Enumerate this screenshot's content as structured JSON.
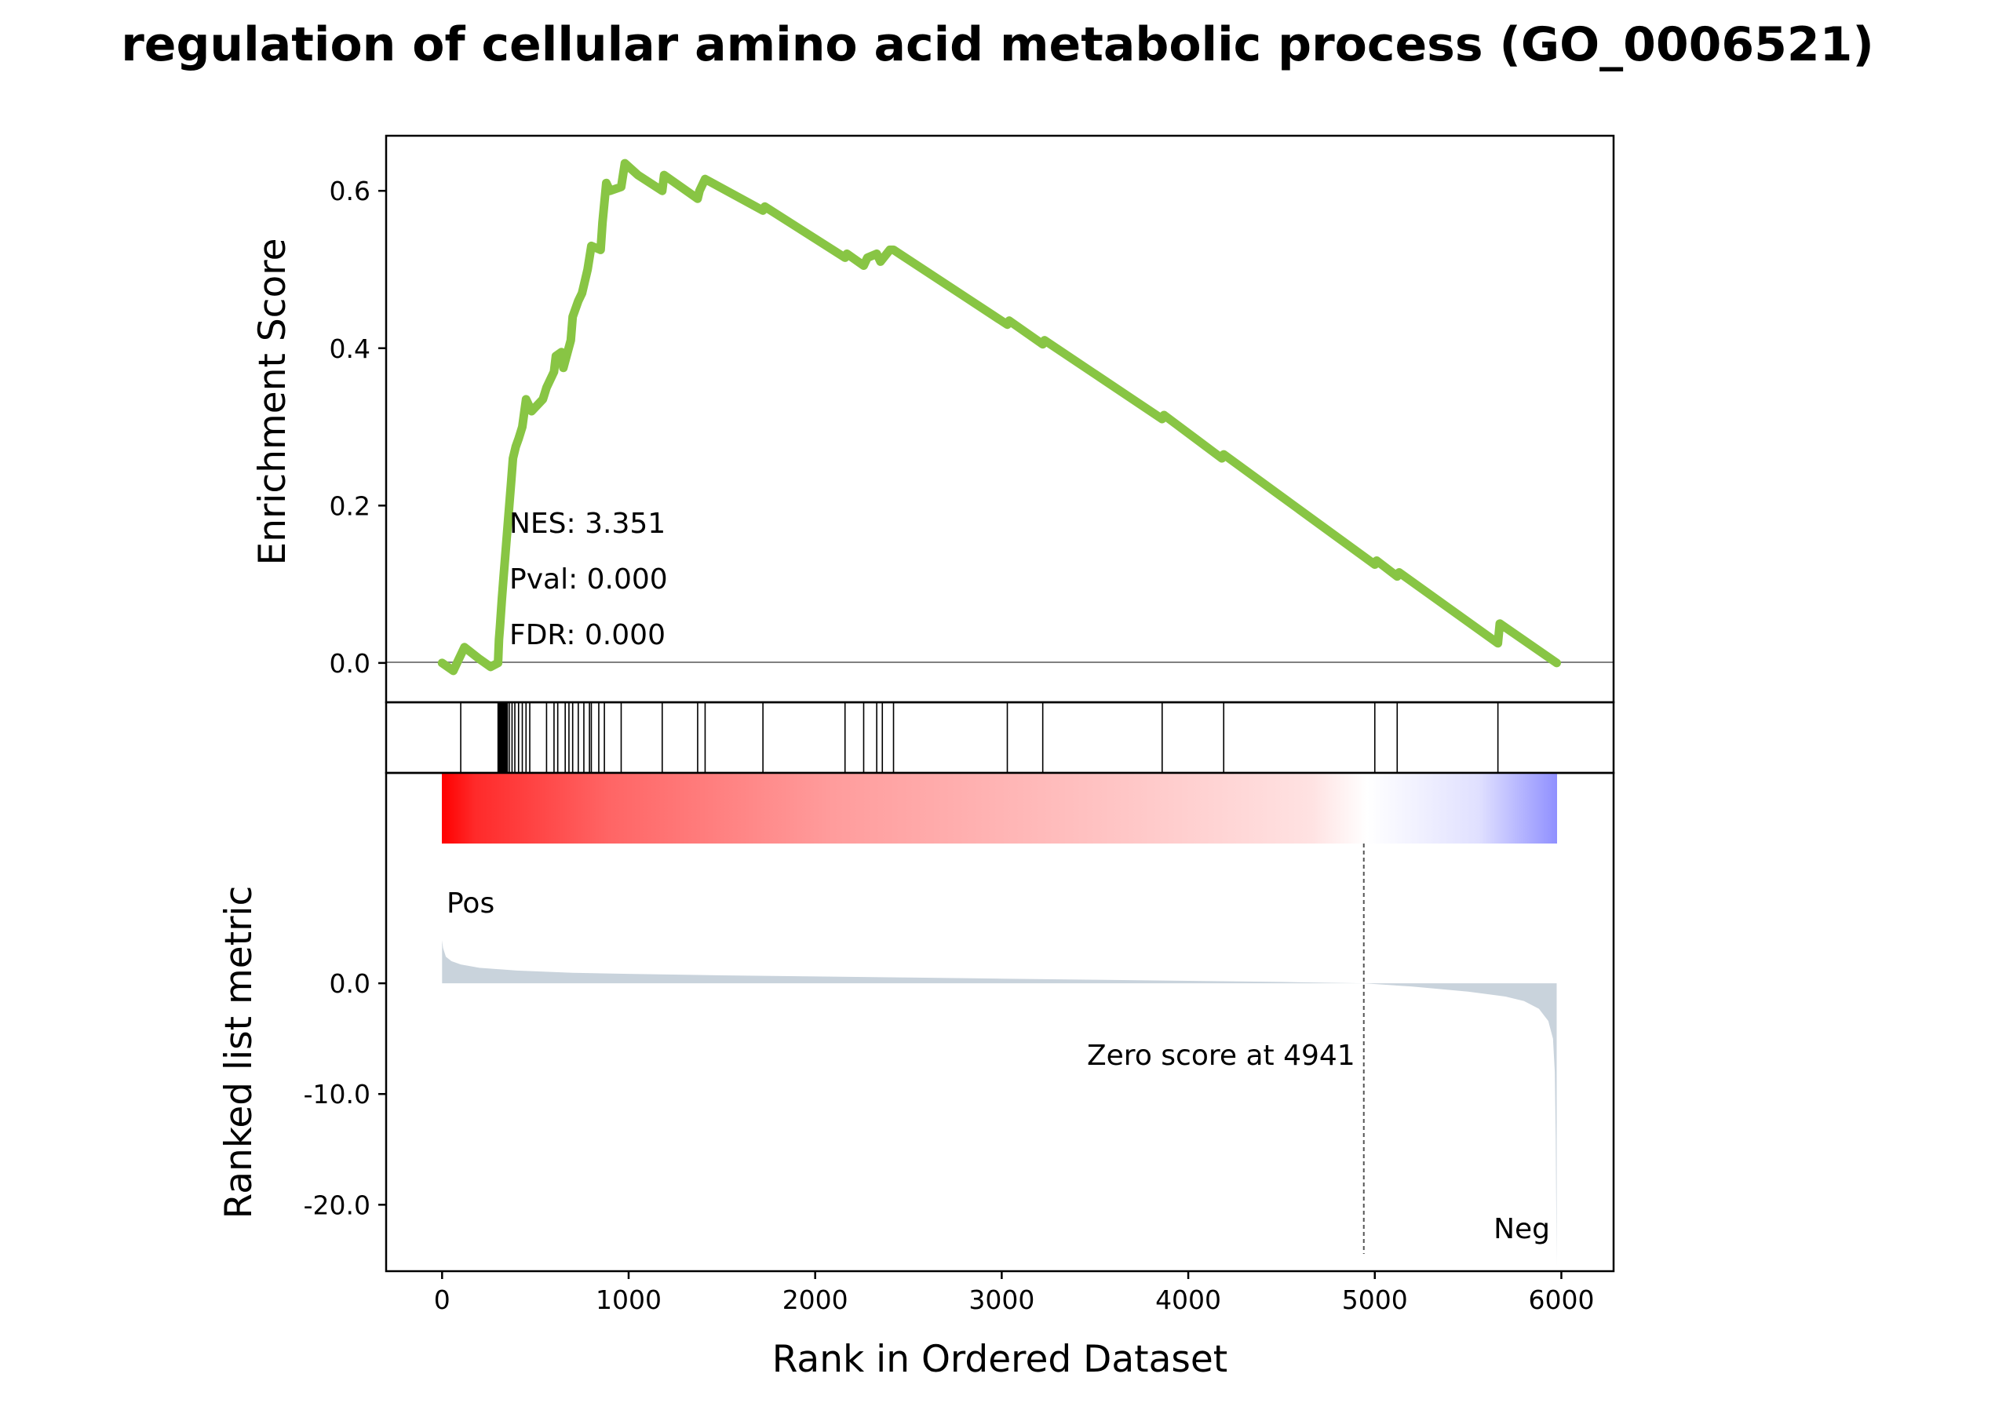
{
  "chart_data": {
    "type": "line",
    "title": "regulation of cellular amino acid metabolic process (GO_0006521)",
    "xlabel": "Rank in Ordered Dataset",
    "xlim": [
      -300,
      6280
    ],
    "xticks": [
      "0",
      "1000",
      "2000",
      "3000",
      "4000",
      "5000",
      "6000"
    ],
    "panels": {
      "enrichment": {
        "ylabel": "Enrichment Score",
        "ylim": [
          -0.05,
          0.67
        ],
        "yticks": [
          "0.0",
          "0.2",
          "0.4",
          "0.6"
        ],
        "line_color": "#88c544",
        "grid": false,
        "series": [
          {
            "x": [
              0,
              60,
              120,
              200,
              260,
              300,
              305,
              310,
              320,
              330,
              340,
              350,
              360,
              370,
              380,
              395,
              410,
              430,
              450,
              470,
              480,
              540,
              560,
              600,
              610,
              640,
              650,
              690,
              700,
              730,
              750,
              780,
              800,
              850,
              860,
              880,
              900,
              960,
              980,
              1050,
              1180,
              1190,
              1370,
              1380,
              1410,
              1720,
              1730,
              2160,
              2170,
              2260,
              2280,
              2330,
              2350,
              2400,
              2420,
              3030,
              3040,
              3220,
              3230,
              3860,
              3870,
              4180,
              4190,
              5000,
              5010,
              5120,
              5130,
              5660,
              5670,
              5975
            ],
            "y": [
              0.0,
              -0.01,
              0.02,
              0.005,
              -0.005,
              0.0,
              0.03,
              0.045,
              0.08,
              0.11,
              0.14,
              0.17,
              0.2,
              0.23,
              0.26,
              0.275,
              0.285,
              0.3,
              0.335,
              0.325,
              0.32,
              0.335,
              0.35,
              0.37,
              0.39,
              0.395,
              0.375,
              0.41,
              0.44,
              0.46,
              0.47,
              0.5,
              0.53,
              0.525,
              0.56,
              0.61,
              0.6,
              0.605,
              0.635,
              0.62,
              0.6,
              0.62,
              0.59,
              0.6,
              0.615,
              0.575,
              0.58,
              0.515,
              0.52,
              0.505,
              0.515,
              0.52,
              0.51,
              0.525,
              0.525,
              0.43,
              0.435,
              0.405,
              0.41,
              0.31,
              0.315,
              0.26,
              0.265,
              0.125,
              0.13,
              0.11,
              0.115,
              0.025,
              0.05,
              0.0
            ]
          }
        ],
        "annotations": [
          "NES: 3.351",
          "Pval: 0.000",
          "FDR: 0.000"
        ]
      },
      "hits": {
        "x": [
          100,
          300,
          305,
          310,
          315,
          320,
          325,
          330,
          335,
          340,
          345,
          350,
          360,
          375,
          390,
          410,
          430,
          450,
          470,
          560,
          600,
          620,
          660,
          680,
          700,
          730,
          760,
          790,
          800,
          840,
          870,
          960,
          1180,
          1370,
          1410,
          1720,
          2160,
          2260,
          2330,
          2360,
          2420,
          3030,
          3220,
          3860,
          4190,
          5000,
          5120,
          5660
        ]
      },
      "ranked_metric": {
        "ylabel": "Ranked list metric",
        "ylim": [
          -26,
          19
        ],
        "yticks": [
          "0.0",
          "-10.0",
          "-20.0"
        ],
        "fill_color": "#c9d3dc",
        "zero_score_rank": 4941,
        "zero_score_label": "Zero score at 4941",
        "pos_label": "Pos",
        "neg_label": "Neg",
        "pos_color": "#ff0000",
        "neg_color": "#0000ff",
        "x": [
          0,
          5,
          20,
          50,
          100,
          200,
          400,
          700,
          1000,
          1500,
          2000,
          2500,
          3000,
          3500,
          4000,
          4500,
          4941,
          5200,
          5500,
          5700,
          5800,
          5880,
          5930,
          5955,
          5965,
          5970,
          5975
        ],
        "y": [
          3.9,
          3.2,
          2.4,
          2.0,
          1.7,
          1.4,
          1.15,
          0.95,
          0.85,
          0.72,
          0.62,
          0.52,
          0.42,
          0.32,
          0.22,
          0.12,
          0.0,
          -0.3,
          -0.75,
          -1.2,
          -1.6,
          -2.3,
          -3.4,
          -5.0,
          -8.0,
          -14.0,
          -25.5
        ]
      }
    }
  }
}
